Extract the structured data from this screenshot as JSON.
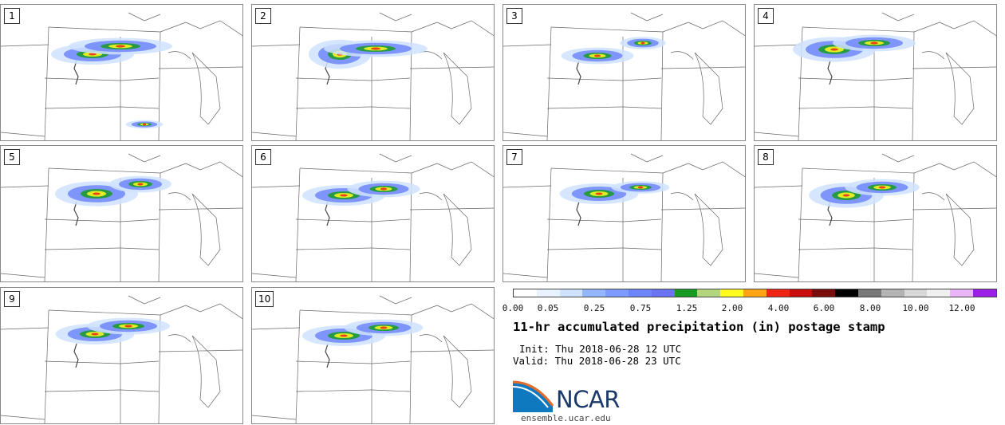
{
  "panels": [
    {
      "label": "1"
    },
    {
      "label": "2"
    },
    {
      "label": "3"
    },
    {
      "label": "4"
    },
    {
      "label": "5"
    },
    {
      "label": "6"
    },
    {
      "label": "7"
    },
    {
      "label": "8"
    },
    {
      "label": "9"
    },
    {
      "label": "10"
    }
  ],
  "colorbar": {
    "colors": [
      "#ffffff",
      "#e8f3ff",
      "#cfe2ff",
      "#94b5ff",
      "#7e9bff",
      "#6f86fb",
      "#6b73f3",
      "#179b25",
      "#b3d57e",
      "#fffb1f",
      "#ffa515",
      "#ef2414",
      "#c80d0b",
      "#7a0d0b",
      "#000000",
      "#787878",
      "#b3b3b3",
      "#d7d7d7",
      "#f0f0f0",
      "#e9b5f7",
      "#9c1fe6"
    ],
    "tick_labels": [
      "0.00",
      "0.05",
      "0.25",
      "0.75",
      "1.25",
      "2.00",
      "4.00",
      "6.00",
      "8.00",
      "10.00",
      "12.00"
    ]
  },
  "title": "11-hr accumulated precipitation (in) postage stamp",
  "init": "Init: Thu 2018-06-28 12 UTC",
  "valid": "Valid: Thu 2018-06-28 23 UTC",
  "logo": {
    "text": "NCAR",
    "url": "ensemble.ucar.edu",
    "brand_color": "#1b3a6a"
  }
}
